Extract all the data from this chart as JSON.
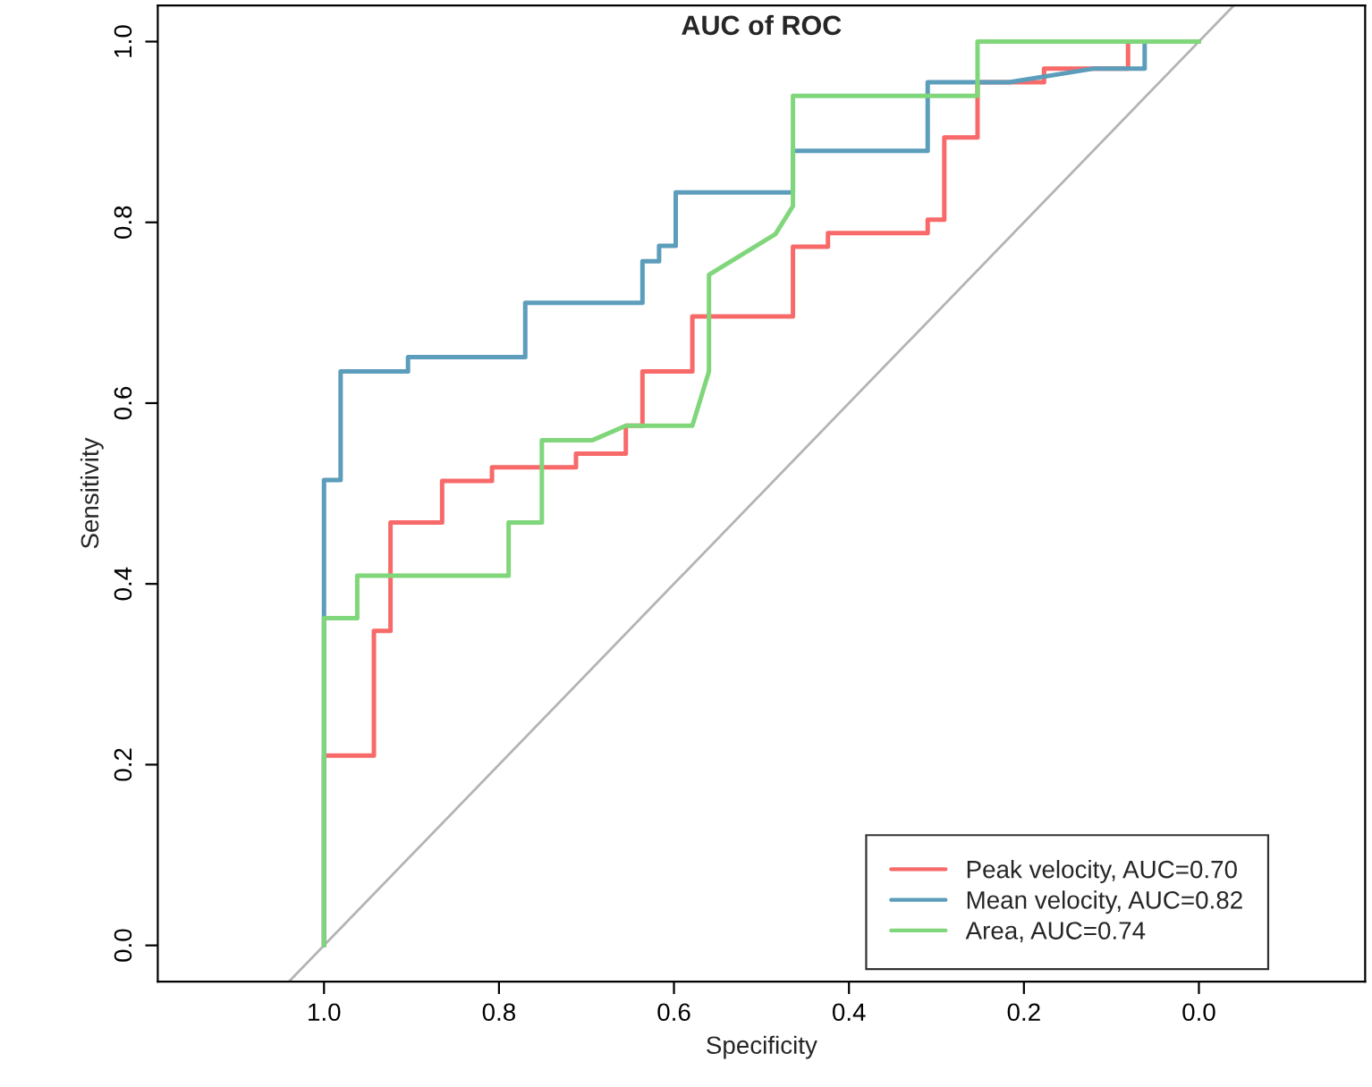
{
  "chart_data": {
    "type": "line",
    "title": "AUC of ROC",
    "xlabel": "Specificity",
    "ylabel": "Sensitivity",
    "xlim": [
      1.19,
      -0.19
    ],
    "ylim": [
      -0.04,
      1.04
    ],
    "xticks": [
      {
        "value": 1.0,
        "label": "1.0"
      },
      0.8,
      0.6,
      0.4,
      0.2,
      {
        "value": 0.0,
        "label": "0.0"
      }
    ],
    "yticks": [
      {
        "value": 0.0,
        "label": "0.0"
      },
      0.2,
      0.4,
      0.6,
      0.8,
      {
        "value": 1.0,
        "label": "1.0"
      }
    ],
    "grid": false,
    "legend": "bottom right",
    "line_style": "solid",
    "marker": "none",
    "series": [
      {
        "name": "Peak velocity, AUC=0.70",
        "color": "#f86a6a",
        "x": [
          1.0,
          1.0,
          0.943,
          0.943,
          0.924,
          0.924,
          0.865,
          0.865,
          0.808,
          0.808,
          0.712,
          0.712,
          0.655,
          0.655,
          0.636,
          0.636,
          0.579,
          0.579,
          0.464,
          0.464,
          0.424,
          0.424,
          0.31,
          0.31,
          0.291,
          0.291,
          0.253,
          0.253,
          0.177,
          0.177,
          0.081,
          0.081,
          0.0
        ],
        "values": [
          0.0,
          0.21,
          0.21,
          0.348,
          0.348,
          0.468,
          0.468,
          0.514,
          0.514,
          0.529,
          0.529,
          0.544,
          0.544,
          0.575,
          0.575,
          0.635,
          0.635,
          0.696,
          0.696,
          0.773,
          0.773,
          0.788,
          0.788,
          0.803,
          0.803,
          0.894,
          0.894,
          0.955,
          0.955,
          0.97,
          0.97,
          1.0,
          1.0
        ]
      },
      {
        "name": "Mean velocity, AUC=0.82",
        "color": "#5b9dbb",
        "x": [
          1.0,
          1.0,
          0.981,
          0.981,
          0.904,
          0.904,
          0.77,
          0.77,
          0.636,
          0.636,
          0.617,
          0.617,
          0.598,
          0.598,
          0.464,
          0.464,
          0.31,
          0.31,
          0.217,
          0.121,
          0.062,
          0.062,
          0.0
        ],
        "values": [
          0.0,
          0.515,
          0.515,
          0.635,
          0.635,
          0.651,
          0.651,
          0.711,
          0.711,
          0.757,
          0.757,
          0.774,
          0.774,
          0.833,
          0.833,
          0.879,
          0.879,
          0.955,
          0.955,
          0.97,
          0.97,
          1.0,
          1.0
        ]
      },
      {
        "name": "Area, AUC=0.74",
        "color": "#80d67a",
        "x": [
          1.0,
          1.0,
          0.962,
          0.962,
          0.789,
          0.789,
          0.751,
          0.751,
          0.693,
          0.655,
          0.579,
          0.56,
          0.56,
          0.484,
          0.464,
          0.464,
          0.253,
          0.253,
          0.0
        ],
        "values": [
          0.0,
          0.362,
          0.362,
          0.409,
          0.409,
          0.468,
          0.468,
          0.559,
          0.559,
          0.575,
          0.575,
          0.635,
          0.742,
          0.787,
          0.818,
          0.94,
          0.94,
          1.0,
          1.0
        ]
      },
      {
        "color": "#b4b4b4",
        "x": [
          1.04,
          -0.04
        ],
        "values": [
          -0.04,
          1.04
        ]
      }
    ]
  }
}
